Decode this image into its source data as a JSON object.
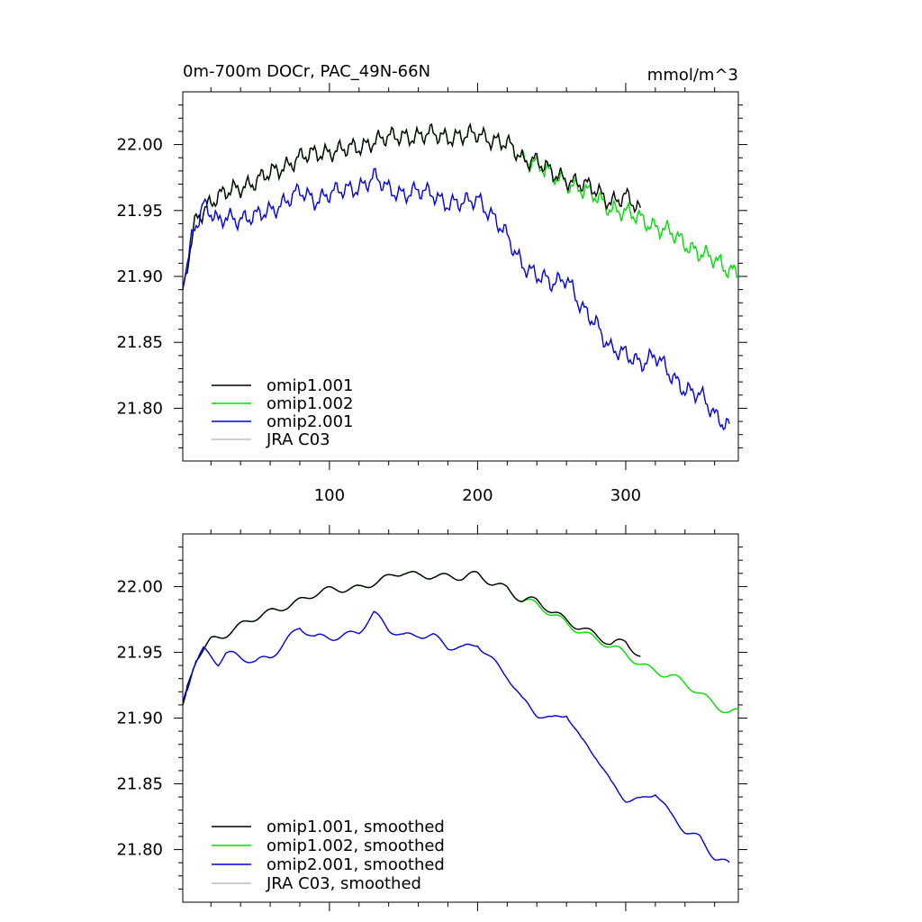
{
  "top_panel": {
    "title_left": "0m-700m DOCr, PAC_49N-66N",
    "title_right": "mmol/m^3"
  },
  "chart_data": [
    {
      "type": "line",
      "title": "0m-700m DOCr, PAC_49N-66N",
      "units_label": "mmol/m^3",
      "xlim": [
        1,
        376
      ],
      "ylim": [
        21.76,
        22.04
      ],
      "x_ticks": [
        100,
        200,
        300
      ],
      "x_tick_labels": [
        "100",
        "200",
        "300"
      ],
      "y_ticks": [
        21.8,
        21.85,
        21.9,
        21.95,
        22.0
      ],
      "y_tick_labels": [
        "21.80",
        "21.85",
        "21.90",
        "21.95",
        "22.00"
      ],
      "legend_position": "bottom-left",
      "series": [
        {
          "name": "omip1.001",
          "color": "#000000",
          "x_start": 1,
          "x_end": 310,
          "x": [
            1,
            10,
            20,
            30,
            40,
            50,
            60,
            70,
            80,
            90,
            100,
            110,
            120,
            130,
            140,
            150,
            160,
            170,
            180,
            190,
            200,
            210,
            220,
            230,
            240,
            250,
            260,
            270,
            280,
            290,
            300,
            310
          ],
          "values": [
            21.89,
            21.944,
            21.957,
            21.963,
            21.968,
            21.972,
            21.978,
            21.984,
            21.99,
            21.993,
            21.995,
            21.996,
            21.998,
            22.003,
            22.005,
            22.007,
            22.006,
            22.008,
            22.006,
            22.006,
            22.008,
            22.004,
            22.0,
            21.99,
            21.988,
            21.978,
            21.974,
            21.97,
            21.965,
            21.957,
            21.96,
            21.95
          ]
        },
        {
          "name": "omip1.002",
          "color": "#00dd00",
          "x_start": 1,
          "x_end": 376,
          "x": [
            1,
            10,
            20,
            30,
            40,
            50,
            60,
            70,
            80,
            90,
            100,
            110,
            120,
            130,
            140,
            150,
            160,
            170,
            180,
            190,
            200,
            210,
            220,
            230,
            240,
            250,
            260,
            270,
            280,
            290,
            300,
            310,
            320,
            330,
            340,
            350,
            360,
            370,
            376
          ],
          "values": [
            21.89,
            21.944,
            21.957,
            21.963,
            21.968,
            21.972,
            21.978,
            21.984,
            21.99,
            21.993,
            21.995,
            21.996,
            21.998,
            22.003,
            22.005,
            22.007,
            22.006,
            22.008,
            22.006,
            22.006,
            22.008,
            22.004,
            22.0,
            21.99,
            21.986,
            21.976,
            21.972,
            21.966,
            21.96,
            21.952,
            21.948,
            21.944,
            21.938,
            21.933,
            21.925,
            21.918,
            21.912,
            21.905,
            21.905
          ]
        },
        {
          "name": "omip2.001",
          "color": "#0000dd",
          "x_start": 1,
          "x_end": 370,
          "x": [
            1,
            8,
            15,
            20,
            25,
            30,
            40,
            50,
            60,
            70,
            80,
            90,
            100,
            110,
            120,
            130,
            140,
            150,
            160,
            170,
            180,
            190,
            200,
            210,
            220,
            230,
            240,
            250,
            260,
            270,
            280,
            290,
            300,
            310,
            320,
            330,
            340,
            350,
            360,
            370
          ],
          "values": [
            21.89,
            21.935,
            21.955,
            21.948,
            21.94,
            21.945,
            21.944,
            21.945,
            21.95,
            21.957,
            21.964,
            21.958,
            21.963,
            21.965,
            21.968,
            21.975,
            21.966,
            21.963,
            21.964,
            21.963,
            21.955,
            21.955,
            21.96,
            21.945,
            21.93,
            21.91,
            21.9,
            21.895,
            21.9,
            21.875,
            21.865,
            21.845,
            21.84,
            21.835,
            21.84,
            21.825,
            21.815,
            21.81,
            21.795,
            21.787
          ]
        },
        {
          "name": "JRA C03",
          "color": "#bbbbbb",
          "x": [],
          "values": []
        }
      ]
    },
    {
      "type": "line",
      "title": "",
      "xlim": [
        1,
        376
      ],
      "ylim": [
        21.76,
        22.04
      ],
      "y_ticks": [
        21.8,
        21.85,
        21.9,
        21.95,
        22.0
      ],
      "y_tick_labels": [
        "21.80",
        "21.85",
        "21.90",
        "21.95",
        "22.00"
      ],
      "legend_position": "bottom-left",
      "series": [
        {
          "name": "omip1.001, smoothed",
          "color": "#000000",
          "x": [
            1,
            10,
            20,
            30,
            40,
            50,
            60,
            70,
            80,
            90,
            100,
            110,
            120,
            130,
            140,
            150,
            160,
            170,
            180,
            190,
            200,
            210,
            220,
            230,
            240,
            250,
            260,
            270,
            280,
            290,
            300,
            310
          ],
          "values": [
            21.91,
            21.945,
            21.96,
            21.965,
            21.97,
            21.975,
            21.98,
            21.986,
            21.99,
            21.994,
            21.996,
            21.998,
            22.0,
            22.004,
            22.006,
            22.01,
            22.008,
            22.01,
            22.008,
            22.006,
            22.008,
            22.003,
            22.0,
            21.99,
            21.988,
            21.98,
            21.975,
            21.97,
            21.963,
            21.955,
            21.957,
            21.948
          ]
        },
        {
          "name": "omip1.002, smoothed",
          "color": "#00dd00",
          "x": [
            1,
            10,
            20,
            30,
            40,
            50,
            60,
            70,
            80,
            90,
            100,
            110,
            120,
            130,
            140,
            150,
            160,
            170,
            180,
            190,
            200,
            210,
            220,
            230,
            240,
            250,
            260,
            270,
            280,
            290,
            300,
            310,
            320,
            330,
            340,
            350,
            360,
            370,
            376
          ],
          "values": [
            21.91,
            21.945,
            21.96,
            21.965,
            21.97,
            21.975,
            21.98,
            21.986,
            21.99,
            21.994,
            21.996,
            21.998,
            22.0,
            22.004,
            22.006,
            22.01,
            22.008,
            22.01,
            22.008,
            22.006,
            22.008,
            22.003,
            22.0,
            21.99,
            21.985,
            21.978,
            21.973,
            21.967,
            21.96,
            21.953,
            21.948,
            21.942,
            21.937,
            21.932,
            21.925,
            21.918,
            21.912,
            21.905,
            21.905
          ]
        },
        {
          "name": "omip2.001, smoothed",
          "color": "#0000dd",
          "x": [
            1,
            8,
            15,
            20,
            25,
            30,
            40,
            50,
            60,
            70,
            80,
            90,
            100,
            110,
            120,
            130,
            140,
            150,
            160,
            170,
            180,
            190,
            200,
            210,
            220,
            230,
            240,
            250,
            260,
            270,
            280,
            290,
            300,
            310,
            320,
            330,
            340,
            350,
            360,
            370
          ],
          "values": [
            21.912,
            21.94,
            21.953,
            21.948,
            21.942,
            21.948,
            21.945,
            21.943,
            21.948,
            21.958,
            21.968,
            21.96,
            21.962,
            21.964,
            21.966,
            21.978,
            21.967,
            21.963,
            21.965,
            21.962,
            21.953,
            21.952,
            21.958,
            21.945,
            21.932,
            21.912,
            21.903,
            21.9,
            21.905,
            21.882,
            21.87,
            21.85,
            21.84,
            21.838,
            21.843,
            21.825,
            21.815,
            21.81,
            21.795,
            21.787
          ]
        },
        {
          "name": "JRA C03, smoothed",
          "color": "#bbbbbb",
          "x": [],
          "values": []
        }
      ]
    }
  ]
}
